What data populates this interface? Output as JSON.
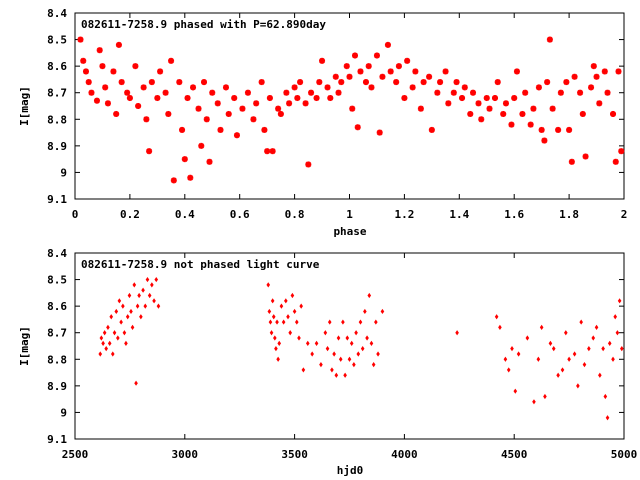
{
  "chart_data": [
    {
      "type": "scatter",
      "title": "082611-7258.9 phased with P=62.890day",
      "xlabel": "phase",
      "ylabel": "I[mag]",
      "xlim": [
        0,
        2
      ],
      "ylim": [
        8.4,
        9.1
      ],
      "y_inverted": true,
      "x_ticks": [
        "0",
        "0.2",
        "0.4",
        "0.6",
        "0.8",
        "1",
        "1.2",
        "1.4",
        "1.6",
        "1.8",
        "2"
      ],
      "y_ticks": [
        "8.4",
        "8.5",
        "8.6",
        "8.7",
        "8.8",
        "8.9",
        "9",
        "9.1"
      ],
      "marker": "star",
      "color": "#ff0000",
      "grid": false,
      "points": [
        [
          0.02,
          8.5
        ],
        [
          0.03,
          8.58
        ],
        [
          0.04,
          8.62
        ],
        [
          0.05,
          8.66
        ],
        [
          0.06,
          8.7
        ],
        [
          0.08,
          8.73
        ],
        [
          0.09,
          8.54
        ],
        [
          0.1,
          8.6
        ],
        [
          0.11,
          8.68
        ],
        [
          0.12,
          8.74
        ],
        [
          0.14,
          8.62
        ],
        [
          0.15,
          8.78
        ],
        [
          0.16,
          8.52
        ],
        [
          0.17,
          8.66
        ],
        [
          0.19,
          8.7
        ],
        [
          0.2,
          8.72
        ],
        [
          0.22,
          8.6
        ],
        [
          0.23,
          8.75
        ],
        [
          0.25,
          8.68
        ],
        [
          0.26,
          8.8
        ],
        [
          0.27,
          8.92
        ],
        [
          0.28,
          8.66
        ],
        [
          0.3,
          8.72
        ],
        [
          0.31,
          8.62
        ],
        [
          0.33,
          8.7
        ],
        [
          0.34,
          8.78
        ],
        [
          0.35,
          8.58
        ],
        [
          0.36,
          9.03
        ],
        [
          0.38,
          8.66
        ],
        [
          0.39,
          8.84
        ],
        [
          0.4,
          8.95
        ],
        [
          0.41,
          8.72
        ],
        [
          0.42,
          9.02
        ],
        [
          0.43,
          8.68
        ],
        [
          0.45,
          8.76
        ],
        [
          0.46,
          8.9
        ],
        [
          0.47,
          8.66
        ],
        [
          0.48,
          8.8
        ],
        [
          0.49,
          8.96
        ],
        [
          0.5,
          8.7
        ],
        [
          0.52,
          8.74
        ],
        [
          0.53,
          8.84
        ],
        [
          0.55,
          8.68
        ],
        [
          0.56,
          8.78
        ],
        [
          0.58,
          8.72
        ],
        [
          0.59,
          8.86
        ],
        [
          0.61,
          8.76
        ],
        [
          0.63,
          8.7
        ],
        [
          0.65,
          8.8
        ],
        [
          0.66,
          8.74
        ],
        [
          0.68,
          8.66
        ],
        [
          0.69,
          8.84
        ],
        [
          0.7,
          8.92
        ],
        [
          0.71,
          8.72
        ],
        [
          0.72,
          8.92
        ],
        [
          0.74,
          8.76
        ],
        [
          0.75,
          8.78
        ],
        [
          0.77,
          8.7
        ],
        [
          0.78,
          8.74
        ],
        [
          0.8,
          8.68
        ],
        [
          0.81,
          8.72
        ],
        [
          0.82,
          8.66
        ],
        [
          0.84,
          8.74
        ],
        [
          0.85,
          8.97
        ],
        [
          0.86,
          8.7
        ],
        [
          0.88,
          8.72
        ],
        [
          0.89,
          8.66
        ],
        [
          0.9,
          8.58
        ],
        [
          0.92,
          8.68
        ],
        [
          0.93,
          8.72
        ],
        [
          0.95,
          8.64
        ],
        [
          0.96,
          8.7
        ],
        [
          0.97,
          8.66
        ],
        [
          0.99,
          8.6
        ],
        [
          1.0,
          8.64
        ],
        [
          1.01,
          8.76
        ],
        [
          1.02,
          8.56
        ],
        [
          1.03,
          8.83
        ],
        [
          1.04,
          8.62
        ],
        [
          1.06,
          8.66
        ],
        [
          1.07,
          8.6
        ],
        [
          1.08,
          8.68
        ],
        [
          1.1,
          8.56
        ],
        [
          1.11,
          8.85
        ],
        [
          1.12,
          8.64
        ],
        [
          1.14,
          8.52
        ],
        [
          1.15,
          8.62
        ],
        [
          1.17,
          8.66
        ],
        [
          1.18,
          8.6
        ],
        [
          1.2,
          8.72
        ],
        [
          1.21,
          8.58
        ],
        [
          1.23,
          8.68
        ],
        [
          1.24,
          8.62
        ],
        [
          1.26,
          8.76
        ],
        [
          1.27,
          8.66
        ],
        [
          1.29,
          8.64
        ],
        [
          1.3,
          8.84
        ],
        [
          1.32,
          8.7
        ],
        [
          1.33,
          8.66
        ],
        [
          1.35,
          8.62
        ],
        [
          1.36,
          8.74
        ],
        [
          1.38,
          8.7
        ],
        [
          1.39,
          8.66
        ],
        [
          1.41,
          8.72
        ],
        [
          1.42,
          8.68
        ],
        [
          1.44,
          8.78
        ],
        [
          1.45,
          8.7
        ],
        [
          1.47,
          8.74
        ],
        [
          1.48,
          8.8
        ],
        [
          1.5,
          8.72
        ],
        [
          1.51,
          8.76
        ],
        [
          1.53,
          8.72
        ],
        [
          1.54,
          8.66
        ],
        [
          1.56,
          8.78
        ],
        [
          1.57,
          8.74
        ],
        [
          1.59,
          8.82
        ],
        [
          1.6,
          8.72
        ],
        [
          1.61,
          8.62
        ],
        [
          1.63,
          8.78
        ],
        [
          1.64,
          8.7
        ],
        [
          1.66,
          8.82
        ],
        [
          1.67,
          8.76
        ],
        [
          1.69,
          8.68
        ],
        [
          1.7,
          8.84
        ],
        [
          1.71,
          8.88
        ],
        [
          1.72,
          8.66
        ],
        [
          1.73,
          8.5
        ],
        [
          1.74,
          8.76
        ],
        [
          1.76,
          8.84
        ],
        [
          1.77,
          8.7
        ],
        [
          1.79,
          8.66
        ],
        [
          1.8,
          8.84
        ],
        [
          1.81,
          8.96
        ],
        [
          1.82,
          8.64
        ],
        [
          1.84,
          8.7
        ],
        [
          1.85,
          8.78
        ],
        [
          1.86,
          8.94
        ],
        [
          1.88,
          8.68
        ],
        [
          1.89,
          8.6
        ],
        [
          1.9,
          8.64
        ],
        [
          1.91,
          8.74
        ],
        [
          1.93,
          8.62
        ],
        [
          1.94,
          8.7
        ],
        [
          1.96,
          8.78
        ],
        [
          1.97,
          8.96
        ],
        [
          1.98,
          8.62
        ],
        [
          1.99,
          8.92
        ]
      ]
    },
    {
      "type": "scatter",
      "title": "082611-7258.9 not phased light curve",
      "xlabel": "hjd0",
      "ylabel": "I[mag]",
      "xlim": [
        2500,
        5000
      ],
      "ylim": [
        8.4,
        9.1
      ],
      "y_inverted": true,
      "x_ticks": [
        "2500",
        "3000",
        "3500",
        "4000",
        "4500",
        "5000"
      ],
      "y_ticks": [
        "8.4",
        "8.5",
        "8.6",
        "8.7",
        "8.8",
        "8.9",
        "9",
        "9.1"
      ],
      "marker": "diamond",
      "color": "#ff0000",
      "grid": false,
      "points": [
        [
          2615,
          8.78
        ],
        [
          2620,
          8.72
        ],
        [
          2628,
          8.74
        ],
        [
          2635,
          8.7
        ],
        [
          2642,
          8.76
        ],
        [
          2650,
          8.68
        ],
        [
          2658,
          8.74
        ],
        [
          2665,
          8.64
        ],
        [
          2672,
          8.78
        ],
        [
          2680,
          8.7
        ],
        [
          2688,
          8.62
        ],
        [
          2695,
          8.72
        ],
        [
          2702,
          8.58
        ],
        [
          2710,
          8.66
        ],
        [
          2718,
          8.6
        ],
        [
          2725,
          8.7
        ],
        [
          2732,
          8.74
        ],
        [
          2740,
          8.64
        ],
        [
          2748,
          8.56
        ],
        [
          2755,
          8.62
        ],
        [
          2762,
          8.68
        ],
        [
          2770,
          8.52
        ],
        [
          2778,
          8.89
        ],
        [
          2785,
          8.6
        ],
        [
          2792,
          8.56
        ],
        [
          2800,
          8.64
        ],
        [
          2810,
          8.54
        ],
        [
          2820,
          8.6
        ],
        [
          2830,
          8.5
        ],
        [
          2840,
          8.56
        ],
        [
          2850,
          8.52
        ],
        [
          2860,
          8.58
        ],
        [
          2870,
          8.5
        ],
        [
          2880,
          8.6
        ],
        [
          3380,
          8.52
        ],
        [
          3385,
          8.62
        ],
        [
          3390,
          8.66
        ],
        [
          3395,
          8.7
        ],
        [
          3400,
          8.58
        ],
        [
          3405,
          8.64
        ],
        [
          3410,
          8.72
        ],
        [
          3415,
          8.76
        ],
        [
          3420,
          8.66
        ],
        [
          3425,
          8.8
        ],
        [
          3430,
          8.74
        ],
        [
          3440,
          8.6
        ],
        [
          3450,
          8.66
        ],
        [
          3460,
          8.58
        ],
        [
          3470,
          8.64
        ],
        [
          3480,
          8.7
        ],
        [
          3490,
          8.56
        ],
        [
          3500,
          8.62
        ],
        [
          3510,
          8.66
        ],
        [
          3520,
          8.72
        ],
        [
          3530,
          8.6
        ],
        [
          3540,
          8.84
        ],
        [
          3560,
          8.74
        ],
        [
          3580,
          8.78
        ],
        [
          3600,
          8.74
        ],
        [
          3620,
          8.82
        ],
        [
          3640,
          8.7
        ],
        [
          3650,
          8.76
        ],
        [
          3660,
          8.66
        ],
        [
          3670,
          8.84
        ],
        [
          3680,
          8.78
        ],
        [
          3690,
          8.86
        ],
        [
          3700,
          8.72
        ],
        [
          3710,
          8.8
        ],
        [
          3720,
          8.66
        ],
        [
          3730,
          8.86
        ],
        [
          3740,
          8.72
        ],
        [
          3750,
          8.8
        ],
        [
          3760,
          8.74
        ],
        [
          3770,
          8.82
        ],
        [
          3780,
          8.7
        ],
        [
          3790,
          8.78
        ],
        [
          3800,
          8.66
        ],
        [
          3810,
          8.76
        ],
        [
          3820,
          8.62
        ],
        [
          3830,
          8.72
        ],
        [
          3840,
          8.56
        ],
        [
          3850,
          8.74
        ],
        [
          3860,
          8.82
        ],
        [
          3870,
          8.66
        ],
        [
          3880,
          8.78
        ],
        [
          3900,
          8.62
        ],
        [
          4240,
          8.7
        ],
        [
          4420,
          8.64
        ],
        [
          4435,
          8.68
        ],
        [
          4460,
          8.8
        ],
        [
          4475,
          8.84
        ],
        [
          4490,
          8.76
        ],
        [
          4505,
          8.92
        ],
        [
          4520,
          8.78
        ],
        [
          4560,
          8.72
        ],
        [
          4590,
          8.96
        ],
        [
          4610,
          8.8
        ],
        [
          4625,
          8.68
        ],
        [
          4640,
          8.94
        ],
        [
          4665,
          8.74
        ],
        [
          4680,
          8.76
        ],
        [
          4700,
          8.86
        ],
        [
          4720,
          8.84
        ],
        [
          4735,
          8.7
        ],
        [
          4750,
          8.8
        ],
        [
          4775,
          8.78
        ],
        [
          4790,
          8.9
        ],
        [
          4805,
          8.66
        ],
        [
          4820,
          8.82
        ],
        [
          4840,
          8.76
        ],
        [
          4860,
          8.72
        ],
        [
          4875,
          8.68
        ],
        [
          4890,
          8.86
        ],
        [
          4905,
          8.76
        ],
        [
          4915,
          8.94
        ],
        [
          4925,
          9.02
        ],
        [
          4935,
          8.74
        ],
        [
          4950,
          8.8
        ],
        [
          4960,
          8.64
        ],
        [
          4970,
          8.7
        ],
        [
          4980,
          8.58
        ],
        [
          4990,
          8.76
        ]
      ]
    }
  ]
}
